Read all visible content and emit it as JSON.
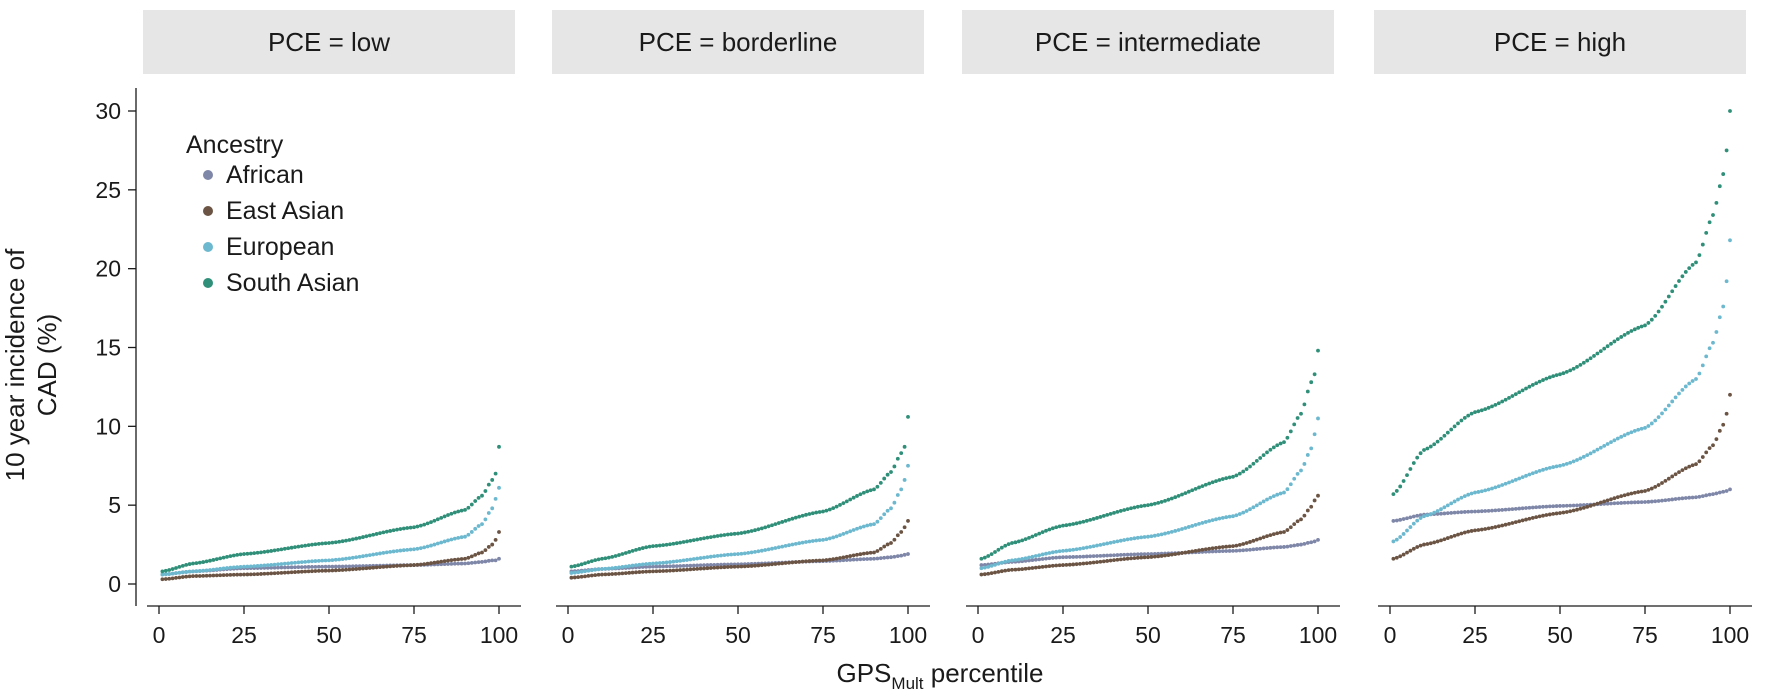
{
  "chart_data": {
    "type": "scatter",
    "y_title_lines": [
      "10 year incidence of",
      "CAD (%)"
    ],
    "x_title_main": "GPS",
    "x_title_sub": "Mult",
    "x_title_rest": " percentile",
    "xlim": [
      0,
      100
    ],
    "ylim": [
      0,
      30
    ],
    "x_ticks": [
      0,
      25,
      50,
      75,
      100
    ],
    "y_ticks": [
      0,
      5,
      10,
      15,
      20,
      25,
      30
    ],
    "legend": {
      "title": "Ancestry",
      "placement": "top-left of first panel",
      "entries": [
        "African",
        "East Asian",
        "European",
        "South Asian"
      ]
    },
    "colors": {
      "African": "#7f87a8",
      "East Asian": "#6b5443",
      "European": "#6cb8cf",
      "South Asian": "#2f8f78"
    },
    "x": [
      1,
      10,
      25,
      50,
      75,
      90,
      95,
      98,
      99,
      100
    ],
    "panels": [
      {
        "strip": "PCE = low",
        "series": [
          {
            "name": "African",
            "values": [
              0.6,
              0.8,
              1.0,
              1.1,
              1.2,
              1.3,
              1.4,
              1.5,
              1.5,
              1.6
            ]
          },
          {
            "name": "East Asian",
            "values": [
              0.3,
              0.5,
              0.6,
              0.85,
              1.2,
              1.6,
              2.0,
              2.5,
              2.8,
              3.3
            ]
          },
          {
            "name": "European",
            "values": [
              0.6,
              0.8,
              1.1,
              1.5,
              2.2,
              3.0,
              3.8,
              4.8,
              5.4,
              6.1
            ]
          },
          {
            "name": "South Asian",
            "values": [
              0.8,
              1.3,
              1.9,
              2.6,
              3.6,
              4.7,
              5.6,
              6.6,
              7.0,
              8.7
            ]
          }
        ]
      },
      {
        "strip": "PCE = borderline",
        "series": [
          {
            "name": "African",
            "values": [
              0.8,
              0.95,
              1.1,
              1.25,
              1.45,
              1.6,
              1.7,
              1.8,
              1.85,
              1.9
            ]
          },
          {
            "name": "East Asian",
            "values": [
              0.4,
              0.6,
              0.8,
              1.1,
              1.5,
              2.0,
              2.6,
              3.3,
              3.6,
              4.0
            ]
          },
          {
            "name": "European",
            "values": [
              0.7,
              0.95,
              1.3,
              1.9,
              2.8,
              3.8,
              4.8,
              6.0,
              6.6,
              7.5
            ]
          },
          {
            "name": "South Asian",
            "values": [
              1.1,
              1.6,
              2.4,
              3.2,
              4.6,
              6.0,
              7.1,
              8.3,
              8.7,
              10.6
            ]
          }
        ]
      },
      {
        "strip": "PCE = intermediate",
        "series": [
          {
            "name": "African",
            "values": [
              1.2,
              1.4,
              1.7,
              1.9,
              2.1,
              2.35,
              2.5,
              2.65,
              2.7,
              2.8
            ]
          },
          {
            "name": "East Asian",
            "values": [
              0.6,
              0.9,
              1.2,
              1.7,
              2.4,
              3.3,
              4.1,
              4.9,
              5.3,
              5.6
            ]
          },
          {
            "name": "European",
            "values": [
              1.0,
              1.5,
              2.1,
              3.0,
              4.3,
              5.8,
              7.2,
              8.6,
              9.5,
              10.5
            ]
          },
          {
            "name": "South Asian",
            "values": [
              1.6,
              2.6,
              3.7,
              5.0,
              6.8,
              9.0,
              10.8,
              12.8,
              13.3,
              14.8
            ]
          }
        ]
      },
      {
        "strip": "PCE = high",
        "series": [
          {
            "name": "African",
            "values": [
              4.0,
              4.4,
              4.6,
              4.95,
              5.2,
              5.5,
              5.7,
              5.85,
              5.9,
              6.0
            ]
          },
          {
            "name": "East Asian",
            "values": [
              1.6,
              2.5,
              3.4,
              4.5,
              5.9,
              7.6,
              8.8,
              10.1,
              10.8,
              12.0
            ]
          },
          {
            "name": "European",
            "values": [
              2.7,
              4.3,
              5.8,
              7.5,
              9.9,
              13.0,
              15.3,
              17.6,
              19.2,
              21.8
            ]
          },
          {
            "name": "South Asian",
            "values": [
              5.7,
              8.5,
              10.9,
              13.3,
              16.4,
              20.4,
              23.4,
              26.0,
              27.5,
              30.0
            ]
          }
        ]
      }
    ]
  }
}
